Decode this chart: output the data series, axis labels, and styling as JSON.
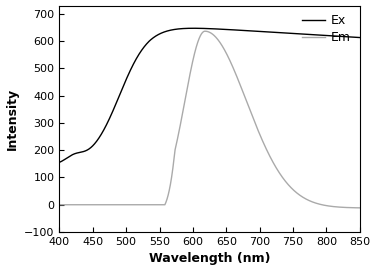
{
  "xlabel": "Wavelength (nm)",
  "ylabel": "Intensity",
  "xlim": [
    400,
    850
  ],
  "ylim": [
    -100,
    730
  ],
  "yticks": [
    -100,
    0,
    100,
    200,
    300,
    400,
    500,
    600,
    700
  ],
  "xticks": [
    400,
    450,
    500,
    550,
    600,
    650,
    700,
    750,
    800,
    850
  ],
  "ex_color": "#000000",
  "em_color": "#aaaaaa",
  "legend_labels": [
    "Ex",
    "Em"
  ],
  "background_color": "#ffffff"
}
